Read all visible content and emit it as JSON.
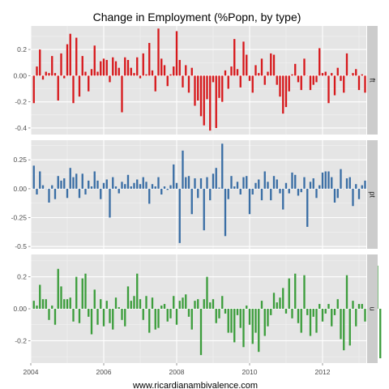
{
  "chart_data": {
    "type": "bar",
    "title": "Change in Employment (%Popn, by type)",
    "xlabel": "www.ricardianambivalence.com",
    "ylabel": "",
    "grid": true,
    "x_range": [
      2004.0,
      2013.2
    ],
    "x_ticks": [
      2004,
      2006,
      2008,
      2010,
      2012
    ],
    "start": "2004-02",
    "panels": [
      {
        "name": "ft",
        "color": "#d7191c",
        "ylim": [
          -0.45,
          0.38
        ],
        "yticks": [
          -0.4,
          -0.2,
          0.0,
          0.2
        ],
        "values": [
          -0.21,
          0.07,
          0.2,
          -0.03,
          0.03,
          0.02,
          0.15,
          0.02,
          -0.19,
          0.17,
          -0.02,
          0.24,
          0.32,
          -0.21,
          0.29,
          -0.16,
          0.15,
          0.03,
          -0.12,
          0.05,
          0.23,
          0.03,
          0.11,
          0.13,
          0.12,
          -0.05,
          0.14,
          0.11,
          0.06,
          -0.28,
          0.14,
          0.12,
          0.06,
          0.02,
          0.14,
          -0.02,
          0.17,
          0.01,
          0.25,
          0.04,
          -0.12,
          0.36,
          0.13,
          0.08,
          -0.08,
          0.01,
          0.07,
          0.34,
          0.12,
          -0.09,
          0.08,
          -0.13,
          0.06,
          -0.23,
          -0.19,
          -0.31,
          -0.38,
          -0.18,
          -0.42,
          -0.05,
          -0.4,
          -0.17,
          -0.2,
          0.04,
          -0.1,
          0.07,
          0.28,
          0.05,
          -0.09,
          0.26,
          0.16,
          -0.04,
          -0.13,
          0.08,
          0.02,
          0.13,
          -0.07,
          0.03,
          0.17,
          0.16,
          -0.07,
          -0.16,
          -0.29,
          -0.24,
          -0.12,
          0.01,
          0.09,
          -0.05,
          -0.11,
          0.13,
          0.0,
          -0.11,
          -0.07,
          -0.05,
          0.21,
          0.02,
          0.03,
          -0.21,
          0.02,
          -0.15,
          0.06,
          -0.04,
          -0.13,
          0.17,
          0.0,
          0.02,
          0.05,
          -0.11,
          0.01,
          -0.13,
          -0.12,
          0.03,
          -0.13
        ]
      },
      {
        "name": "pt",
        "color": "#3a6ea5",
        "ylim": [
          -0.52,
          0.42
        ],
        "yticks": [
          -0.5,
          -0.25,
          0.0,
          0.25
        ],
        "values": [
          0.2,
          -0.05,
          0.15,
          0.03,
          0.0,
          -0.12,
          0.03,
          -0.09,
          0.11,
          0.07,
          0.09,
          -0.08,
          0.18,
          0.1,
          0.13,
          -0.08,
          0.13,
          -0.05,
          0.07,
          0.02,
          0.15,
          0.07,
          -0.09,
          0.05,
          0.08,
          -0.25,
          0.1,
          0.02,
          -0.04,
          0.06,
          0.04,
          0.12,
          0.02,
          0.05,
          0.08,
          0.04,
          0.1,
          0.06,
          -0.13,
          0.04,
          0.02,
          0.1,
          -0.05,
          0.02,
          -0.01,
          0.03,
          0.21,
          0.05,
          -0.47,
          0.33,
          0.1,
          0.11,
          -0.22,
          0.09,
          -0.08,
          0.09,
          -0.36,
          0.1,
          -0.1,
          0.13,
          0.18,
          0.01,
          0.39,
          -0.41,
          -0.09,
          0.11,
          0.02,
          0.06,
          -0.05,
          0.1,
          0.11,
          -0.22,
          -0.05,
          0.05,
          0.08,
          -0.1,
          0.15,
          0.06,
          -0.1,
          0.11,
          0.08,
          -0.04,
          -0.18,
          0.05,
          -0.04,
          0.14,
          0.12,
          -0.06,
          -0.03,
          0.1,
          -0.33,
          0.06,
          0.09,
          -0.08,
          0.03,
          0.14,
          0.15,
          0.15,
          0.1,
          -0.12,
          -0.08,
          0.17,
          0.0,
          0.09,
          0.1,
          -0.15,
          0.04,
          -0.09,
          0.03,
          0.07,
          -0.08,
          0.25,
          -0.2
        ]
      },
      {
        "name": "u",
        "color": "#3c9d3c",
        "ylim": [
          -0.34,
          0.34
        ],
        "yticks": [
          -0.2,
          0.0,
          0.2
        ],
        "values": [
          0.05,
          0.02,
          0.15,
          0.06,
          0.06,
          -0.07,
          0.02,
          -0.1,
          0.25,
          0.14,
          0.06,
          0.06,
          0.07,
          -0.08,
          0.2,
          -0.09,
          0.19,
          0.22,
          -0.05,
          -0.16,
          0.12,
          -0.1,
          0.06,
          -0.11,
          0.05,
          -0.09,
          -0.13,
          0.07,
          0.01,
          -0.07,
          -0.11,
          0.14,
          0.05,
          0.08,
          0.22,
          0.06,
          -0.07,
          0.08,
          -0.15,
          0.07,
          -0.13,
          -0.12,
          0.02,
          0.03,
          -0.08,
          -0.06,
          0.08,
          -0.1,
          0.05,
          0.07,
          0.09,
          -0.05,
          -0.13,
          0.05,
          0.06,
          -0.29,
          0.06,
          0.2,
          0.04,
          0.06,
          -0.09,
          -0.06,
          0.08,
          -0.03,
          -0.15,
          -0.15,
          -0.21,
          -0.04,
          -0.12,
          -0.24,
          0.02,
          -0.1,
          -0.22,
          -0.15,
          -0.27,
          0.05,
          -0.17,
          -0.11,
          -0.04,
          0.1,
          0.04,
          0.07,
          0.13,
          -0.03,
          0.19,
          -0.06,
          0.22,
          -0.09,
          -0.15,
          0.21,
          -0.04,
          -0.17,
          -0.05,
          -0.15,
          0.03,
          -0.08,
          -0.03,
          0.03,
          -0.11,
          -0.04,
          0.06,
          -0.19,
          -0.26,
          0.21,
          -0.23,
          0.05,
          -0.11,
          0.03,
          0.03,
          -0.08,
          0.03,
          -0.22,
          0.03,
          0.27,
          -0.31
        ]
      }
    ]
  }
}
